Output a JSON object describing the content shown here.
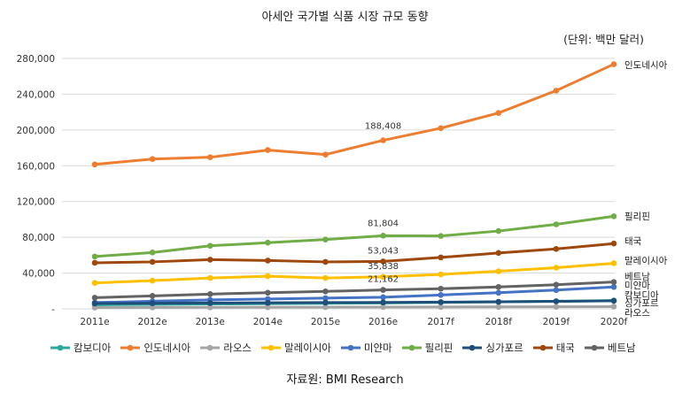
{
  "title": "아세안 국가별 식품 시장 규모 동향",
  "unit": "(단위: 백만 달러)",
  "source": "자료원: BMI Research",
  "chart_data": {
    "type": "line",
    "categories": [
      "2011e",
      "2012e",
      "2013e",
      "2014e",
      "2015e",
      "2016e",
      "2017f",
      "2018f",
      "2019f",
      "2020f"
    ],
    "ylim": [
      0,
      280000
    ],
    "yticks": [
      0,
      40000,
      80000,
      120000,
      160000,
      200000,
      240000,
      280000
    ],
    "ytick_labels": [
      "-",
      "40,000",
      "80,000",
      "120,000",
      "160,000",
      "200,000",
      "240,000",
      "280,000"
    ],
    "grid": true,
    "legend_position": "bottom",
    "series": [
      {
        "name": "캄보디아",
        "color": "#2ca89a",
        "values": [
          4500,
          5000,
          5400,
          5800,
          6200,
          6600,
          7200,
          7800,
          8500,
          9300
        ]
      },
      {
        "name": "인도네시아",
        "color": "#ed7d31",
        "values": [
          161500,
          167500,
          169500,
          177500,
          172500,
          188408,
          202000,
          219000,
          244000,
          273500
        ]
      },
      {
        "name": "라오스",
        "color": "#a5a5a5",
        "values": [
          1500,
          1600,
          1700,
          1800,
          1900,
          2000,
          2100,
          2200,
          2300,
          2500
        ]
      },
      {
        "name": "말레이시아",
        "color": "#ffc000",
        "values": [
          29000,
          31500,
          34500,
          36500,
          34500,
          35838,
          38500,
          42000,
          46000,
          51000
        ]
      },
      {
        "name": "미얀마",
        "color": "#4472c4",
        "values": [
          7000,
          8500,
          10000,
          11000,
          12000,
          13000,
          15500,
          18000,
          21000,
          24500
        ]
      },
      {
        "name": "필리핀",
        "color": "#70ad47",
        "values": [
          58500,
          63000,
          70500,
          74000,
          77500,
          81804,
          81500,
          87000,
          94500,
          103500
        ]
      },
      {
        "name": "싱가포르",
        "color": "#1f4e79",
        "values": [
          6000,
          6300,
          6500,
          6800,
          7000,
          7200,
          7500,
          7900,
          8400,
          9000
        ]
      },
      {
        "name": "태국",
        "color": "#9e480e",
        "values": [
          51500,
          52500,
          55000,
          54000,
          52500,
          53043,
          57500,
          62500,
          67000,
          73000
        ]
      },
      {
        "name": "베트남",
        "color": "#636363",
        "values": [
          12500,
          14500,
          16500,
          18000,
          19500,
          21162,
          22500,
          24500,
          27000,
          30000
        ]
      }
    ],
    "data_labels": [
      {
        "series": "인도네시아",
        "category": "2016e",
        "text": "188,408"
      },
      {
        "series": "필리핀",
        "category": "2016e",
        "text": "81,804"
      },
      {
        "series": "태국",
        "category": "2016e",
        "text": "53,043"
      },
      {
        "series": "말레이시아",
        "category": "2016e",
        "text": "35,838"
      },
      {
        "series": "베트남",
        "category": "2016e",
        "text": "21,162"
      }
    ],
    "end_labels": [
      {
        "series": "인도네시아",
        "text": "인도네시아"
      },
      {
        "series": "필리핀",
        "text": "필리핀"
      },
      {
        "series": "태국",
        "text": "태국"
      },
      {
        "series": "말레이시아",
        "text": "말레이시아"
      },
      {
        "series": "베트남",
        "text": "베트남"
      },
      {
        "series": "미얀마",
        "text": "미얀마"
      },
      {
        "series": "캄보디아",
        "text": "캄보디아"
      },
      {
        "series": "싱가포르",
        "text": "싱가포르"
      },
      {
        "series": "라오스",
        "text": "라오스"
      }
    ]
  }
}
